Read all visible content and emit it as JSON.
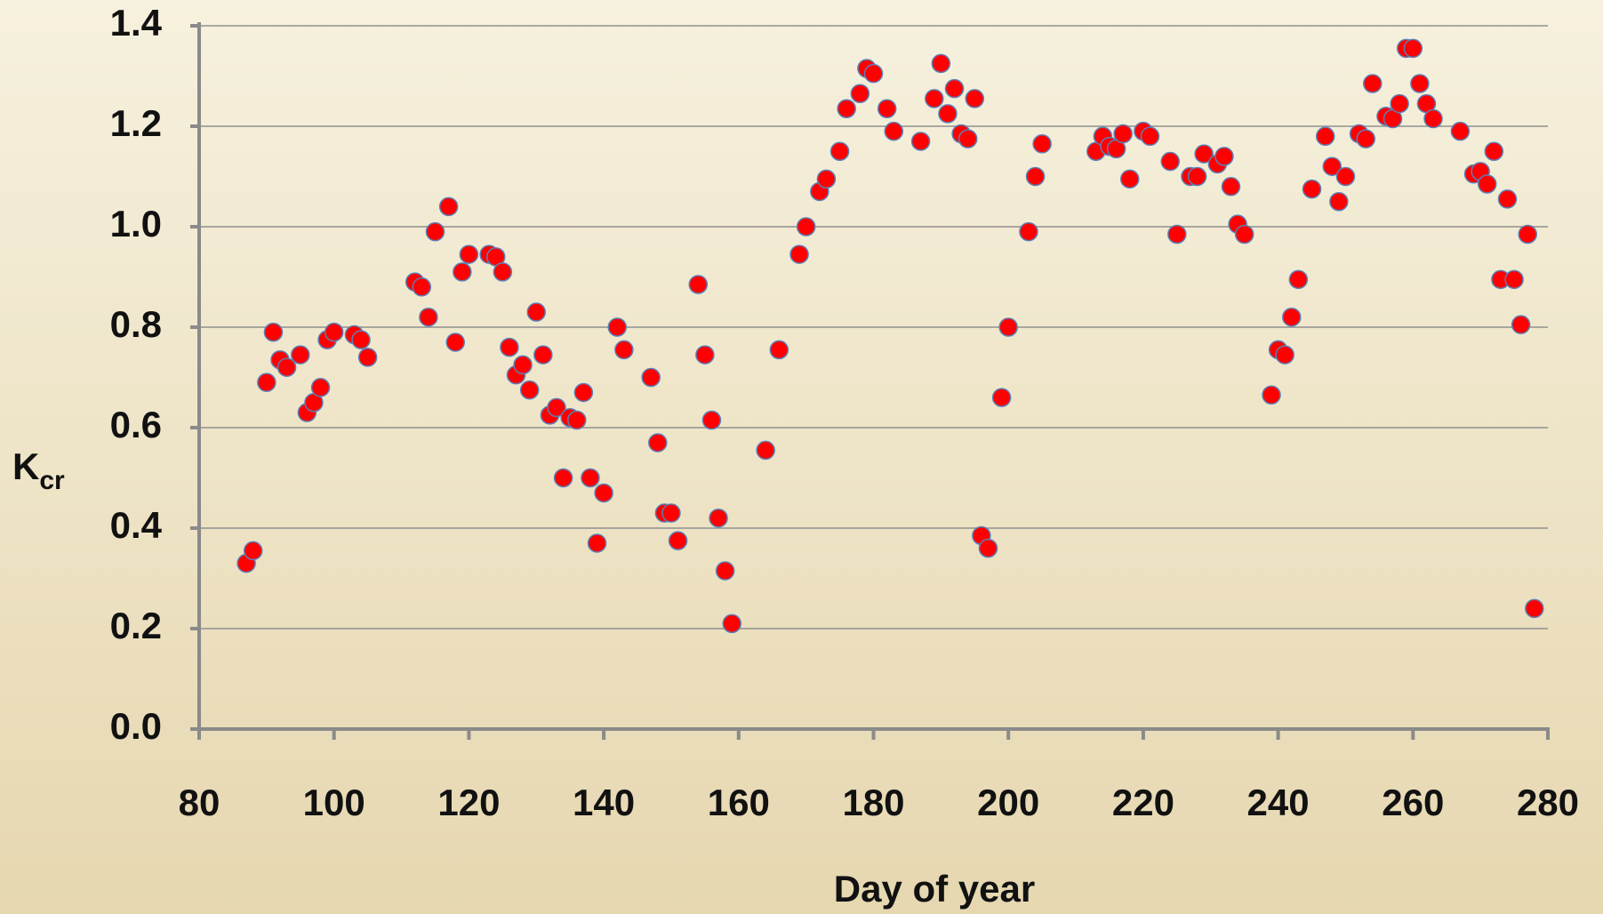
{
  "chart_data": {
    "type": "scatter",
    "xlabel": "Day of year",
    "ylabel": {
      "base": "K",
      "subscript": "cr"
    },
    "xlim": [
      80,
      280
    ],
    "xticks": [
      80,
      100,
      120,
      140,
      160,
      180,
      200,
      220,
      240,
      260,
      280
    ],
    "ylim": [
      0,
      1.4
    ],
    "yticks": [
      {
        "value": 0,
        "label": "0.0"
      },
      0.2,
      0.4,
      0.6,
      0.8,
      {
        "value": 1,
        "label": "1.0"
      },
      1.2,
      1.4
    ],
    "grid": true,
    "series": [
      {
        "color": "#ff0000",
        "edgecolor": "#5b7fb5",
        "x": [
          87,
          88,
          90,
          91,
          92,
          93,
          95,
          96,
          97,
          98,
          99,
          100,
          103,
          104,
          105,
          112,
          113,
          114,
          115,
          117,
          118,
          119,
          120,
          123,
          124,
          125,
          126,
          127,
          128,
          129,
          130,
          131,
          132,
          133,
          134,
          135,
          136,
          137,
          138,
          139,
          140,
          142,
          143,
          147,
          148,
          149,
          150,
          151,
          154,
          155,
          156,
          157,
          158,
          159,
          164,
          166,
          169,
          170,
          172,
          173,
          175,
          176,
          178,
          179,
          180,
          182,
          183,
          187,
          189,
          190,
          191,
          192,
          193,
          194,
          195,
          196,
          197,
          199,
          200,
          203,
          204,
          205,
          213,
          214,
          215,
          216,
          217,
          218,
          220,
          221,
          224,
          225,
          227,
          228,
          229,
          231,
          232,
          233,
          234,
          235,
          239,
          240,
          241,
          242,
          243,
          245,
          247,
          248,
          249,
          250,
          252,
          253,
          254,
          256,
          257,
          258,
          259,
          260,
          261,
          262,
          263,
          267,
          269,
          270,
          271,
          272,
          273,
          274,
          275,
          276,
          277,
          278
        ],
        "values": [
          0.33,
          0.355,
          0.69,
          0.79,
          0.735,
          0.72,
          0.745,
          0.63,
          0.65,
          0.68,
          0.775,
          0.79,
          0.785,
          0.775,
          0.74,
          0.89,
          0.88,
          0.82,
          0.99,
          1.04,
          0.77,
          0.91,
          0.945,
          0.945,
          0.94,
          0.91,
          0.76,
          0.705,
          0.725,
          0.675,
          0.83,
          0.745,
          0.625,
          0.64,
          0.5,
          0.62,
          0.615,
          0.67,
          0.5,
          0.37,
          0.47,
          0.8,
          0.755,
          0.7,
          0.57,
          0.43,
          0.43,
          0.375,
          0.885,
          0.745,
          0.615,
          0.42,
          0.315,
          0.21,
          0.555,
          0.755,
          0.945,
          1.0,
          1.07,
          1.095,
          1.15,
          1.235,
          1.265,
          1.315,
          1.305,
          1.235,
          1.19,
          1.17,
          1.255,
          1.325,
          1.225,
          1.275,
          1.185,
          1.175,
          1.255,
          0.385,
          0.36,
          0.66,
          0.8,
          0.99,
          1.1,
          1.165,
          1.15,
          1.18,
          1.16,
          1.155,
          1.185,
          1.095,
          1.19,
          1.18,
          1.13,
          0.985,
          1.1,
          1.1,
          1.145,
          1.125,
          1.14,
          1.08,
          1.005,
          0.985,
          0.665,
          0.755,
          0.745,
          0.82,
          0.895,
          1.075,
          1.18,
          1.12,
          1.05,
          1.1,
          1.185,
          1.175,
          1.285,
          1.22,
          1.215,
          1.245,
          1.355,
          1.355,
          1.285,
          1.245,
          1.215,
          1.19,
          1.105,
          1.11,
          1.085,
          1.15,
          0.895,
          1.055,
          0.895,
          0.805,
          0.985,
          0.24
        ]
      }
    ]
  }
}
